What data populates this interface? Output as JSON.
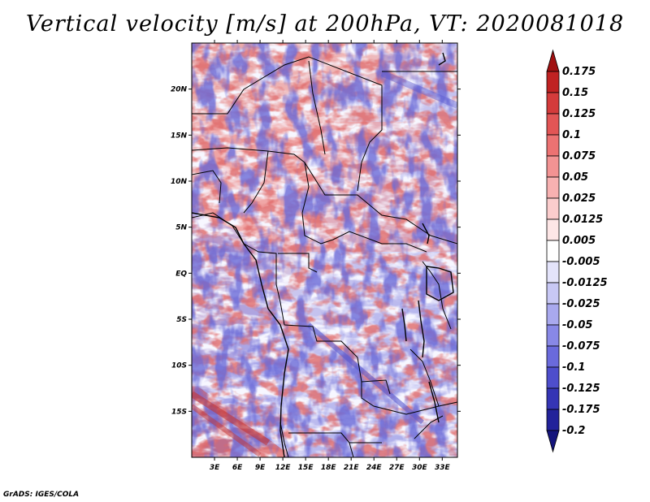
{
  "title": "Vertical velocity [m/s] at 200hPa, VT: 2020081018",
  "credit": "GrADS: IGES/COLA",
  "map": {
    "lat_labels": [
      "20N",
      "15N",
      "10N",
      "5N",
      "EQ",
      "5S",
      "10S",
      "15S"
    ],
    "lat_values": [
      20,
      15,
      10,
      5,
      0,
      -5,
      -10,
      -15
    ],
    "lon_labels": [
      "3E",
      "6E",
      "9E",
      "12E",
      "15E",
      "18E",
      "21E",
      "24E",
      "27E",
      "30E",
      "33E"
    ],
    "lon_values": [
      3,
      6,
      9,
      12,
      15,
      18,
      21,
      24,
      27,
      30,
      33
    ],
    "lon_range": [
      0,
      35
    ],
    "lat_range": [
      -20,
      25
    ]
  },
  "colorbar": {
    "labels": [
      "0.175",
      "0.15",
      "0.125",
      "0.1",
      "0.075",
      "0.05",
      "0.025",
      "0.0125",
      "0.005",
      "-0.005",
      "-0.0125",
      "-0.025",
      "-0.05",
      "-0.075",
      "-0.1",
      "-0.125",
      "-0.175",
      "-0.2"
    ],
    "colors": [
      "#a01010",
      "#c02222",
      "#d43b3b",
      "#e25555",
      "#ec7272",
      "#f29393",
      "#f7b1b1",
      "#fbcdcd",
      "#fde6e6",
      "#ffffff",
      "#e4e4fb",
      "#c8c8f5",
      "#a9a9ee",
      "#8888e6",
      "#6a6adc",
      "#4e4ecc",
      "#3535b5",
      "#22229a",
      "#14147c"
    ]
  }
}
